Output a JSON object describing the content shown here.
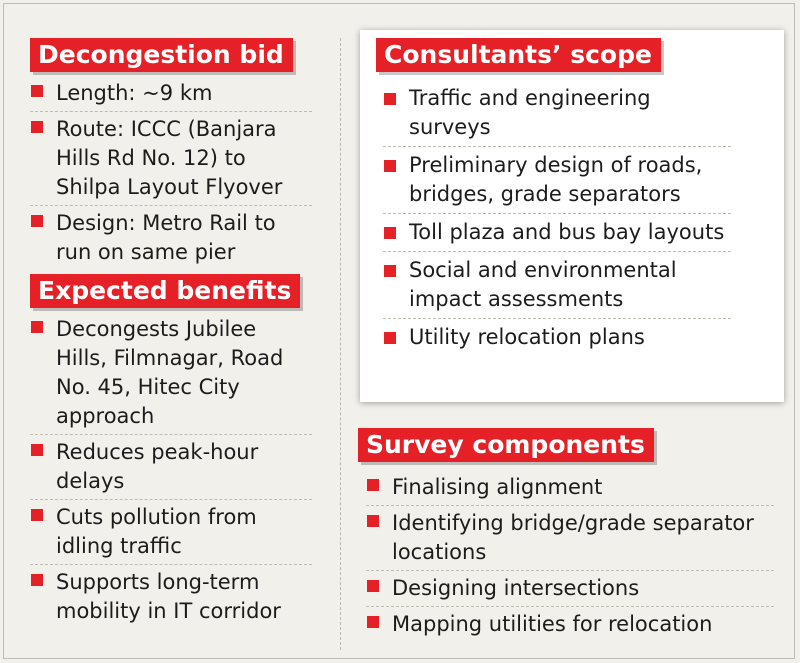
{
  "decongestion": {
    "title": "Decongestion bid",
    "items": [
      "Length: ~9 km",
      "Route: ICCC (Banjara Hills Rd No. 12) to Shilpa Layout Flyover",
      "Design: Metro Rail to run on same pier"
    ]
  },
  "benefits": {
    "title": "Expected benefits",
    "items": [
      "Decongests Jubilee Hills, Filmnagar, Road No. 45, Hitec City approach",
      "Reduces peak-hour delays",
      "Cuts pollution from idling traffic",
      "Supports long-term mobility in IT corridor"
    ]
  },
  "consultants": {
    "title": "Consultants’ scope",
    "items": [
      "Traffic and engineering surveys",
      "Preliminary design of roads, bridges, grade separators",
      "Toll plaza and bus bay layouts",
      "Social and environmental impact assessments",
      "Utility relocation plans"
    ]
  },
  "survey": {
    "title": "Survey components",
    "items": [
      "Finalising alignment",
      "Identifying bridge/grade separator locations",
      "Designing intersections",
      "Mapping utilities for relocation"
    ]
  },
  "colors": {
    "accent_red": "#e52027",
    "background": "#f1f0eb",
    "card": "#ffffff"
  }
}
